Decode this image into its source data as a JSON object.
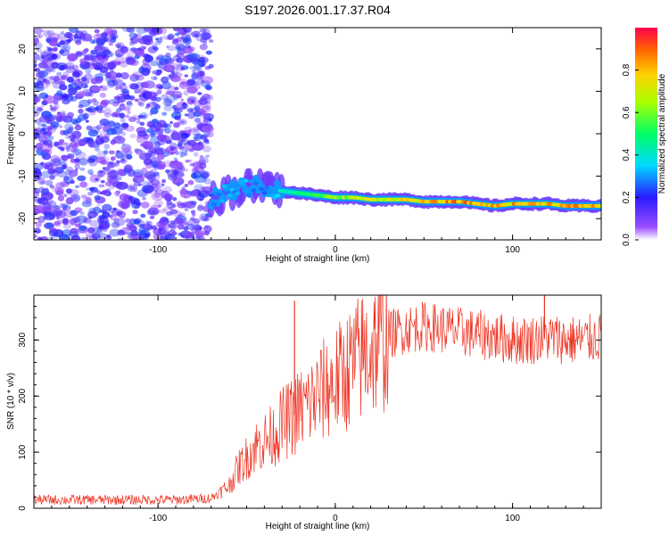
{
  "title": "S197.2026.001.17.37.R04",
  "chart_data": [
    {
      "type": "heatmap",
      "name": "spectrogram",
      "xlabel": "Height of straight line (km)",
      "ylabel": "Frequency (Hz)",
      "xlim": [
        -170,
        150
      ],
      "ylim": [
        -25,
        25
      ],
      "xticks": [
        -100,
        0,
        100
      ],
      "yticks": [
        -20,
        -10,
        0,
        10,
        20
      ],
      "noise_region": {
        "x_from": -170,
        "x_to": -70,
        "amplitude": [
          0.05,
          0.25
        ]
      },
      "ridge": {
        "x": [
          -70,
          -60,
          -50,
          -40,
          -30,
          -20,
          -10,
          0,
          10,
          20,
          30,
          40,
          50,
          60,
          70,
          80,
          90,
          100,
          110,
          120,
          130,
          140,
          150
        ],
        "freq": [
          -16,
          -13.5,
          -12.5,
          -12.5,
          -13.5,
          -14,
          -14.5,
          -15,
          -15,
          -15.5,
          -15.5,
          -15.5,
          -16,
          -16,
          -16,
          -16.5,
          -17,
          -16.5,
          -16.5,
          -16.5,
          -17,
          -17,
          -17
        ],
        "amplitude": [
          0.3,
          0.35,
          0.35,
          0.3,
          0.45,
          0.55,
          0.6,
          0.7,
          0.75,
          0.8,
          0.8,
          0.85,
          0.85,
          0.9,
          0.95,
          0.9,
          0.9,
          0.9,
          0.9,
          0.92,
          0.92,
          0.92,
          0.9
        ]
      },
      "colorbar": {
        "label": "Normalized spectral amplitude",
        "range": [
          0,
          1
        ],
        "ticks": [
          "0.0",
          "0.2",
          "0.4",
          "0.6",
          "0.8"
        ]
      }
    },
    {
      "type": "line",
      "name": "snr",
      "xlabel": "Height of straight line (km)",
      "ylabel": "SNR (10 * v/v)",
      "xlim": [
        -170,
        150
      ],
      "ylim": [
        0,
        380
      ],
      "xticks": [
        -100,
        0,
        100
      ],
      "yticks": [
        0,
        100,
        200,
        300
      ],
      "color": "#ee3322",
      "series": [
        {
          "name": "SNR",
          "x": [
            -170,
            -150,
            -130,
            -110,
            -90,
            -70,
            -60,
            -55,
            -50,
            -45,
            -40,
            -35,
            -30,
            -25,
            -20,
            -15,
            -10,
            -5,
            0,
            5,
            10,
            15,
            20,
            25,
            30,
            40,
            50,
            60,
            70,
            80,
            90,
            100,
            110,
            120,
            130,
            140,
            150
          ],
          "y": [
            15,
            15,
            15,
            15,
            15,
            18,
            40,
            70,
            90,
            110,
            120,
            130,
            150,
            160,
            175,
            185,
            200,
            215,
            225,
            240,
            255,
            270,
            285,
            295,
            310,
            320,
            325,
            320,
            315,
            310,
            305,
            300,
            300,
            305,
            300,
            300,
            305
          ]
        }
      ],
      "spikes": [
        {
          "x": -23,
          "y": 370
        },
        {
          "x": 118,
          "y": 380
        }
      ]
    }
  ]
}
